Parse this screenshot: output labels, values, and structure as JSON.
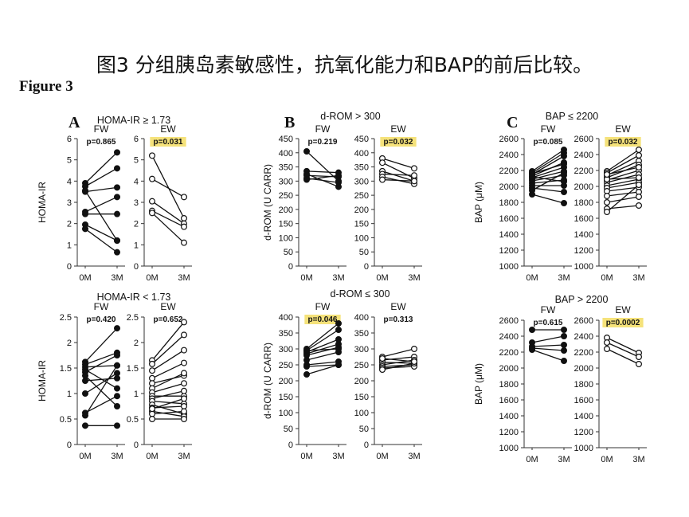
{
  "title": "图3 分组胰岛素敏感性，抗氧化能力和BAP的前后比较。",
  "figure_label": "Figure 3",
  "colors": {
    "highlight": "#f5e27a",
    "line": "#111111",
    "filled_marker": "#111111",
    "open_marker": "#ffffff"
  },
  "chart_data": [
    {
      "type": "line",
      "panel": "A",
      "title": "HOMA-IR ≥ 1.73",
      "ylabel": "HOMA-IR",
      "ylim": [
        0,
        6
      ],
      "yticks": [
        0,
        1,
        2,
        3,
        4,
        5,
        6
      ],
      "x": [
        "0M",
        "3M"
      ],
      "groups": [
        {
          "name": "FW",
          "p": "p=0.865",
          "highlight": false,
          "marker": "filled",
          "series": [
            [
              3.9,
              5.35
            ],
            [
              3.75,
              4.6
            ],
            [
              3.55,
              1.2
            ],
            [
              3.5,
              3.7
            ],
            [
              2.55,
              3.25
            ],
            [
              2.45,
              2.45
            ],
            [
              1.95,
              1.2
            ],
            [
              1.75,
              0.65
            ]
          ]
        },
        {
          "name": "EW",
          "p": "p=0.031",
          "highlight": true,
          "marker": "open",
          "series": [
            [
              5.2,
              2.25
            ],
            [
              4.1,
              3.25
            ],
            [
              3.05,
              2.0
            ],
            [
              2.6,
              1.85
            ],
            [
              2.5,
              1.1
            ]
          ]
        }
      ]
    },
    {
      "type": "line",
      "panel": "B",
      "title": "d-ROM > 300",
      "ylabel": "d-ROM (U CARR)",
      "ylim": [
        0,
        450
      ],
      "yticks": [
        0,
        50,
        100,
        150,
        200,
        250,
        300,
        350,
        400,
        450
      ],
      "x": [
        "0M",
        "3M"
      ],
      "groups": [
        {
          "name": "FW",
          "p": "p=0.219",
          "highlight": false,
          "marker": "filled",
          "series": [
            [
              405,
              300
            ],
            [
              335,
              330
            ],
            [
              325,
              280
            ],
            [
              320,
              315
            ],
            [
              310,
              295
            ],
            [
              305,
              320
            ]
          ]
        },
        {
          "name": "EW",
          "p": "p=0.032",
          "highlight": true,
          "marker": "open",
          "series": [
            [
              380,
              345
            ],
            [
              365,
              310
            ],
            [
              335,
              300
            ],
            [
              325,
              320
            ],
            [
              315,
              290
            ],
            [
              305,
              300
            ]
          ]
        }
      ]
    },
    {
      "type": "line",
      "panel": "C",
      "title": "BAP ≤ 2200",
      "ylabel": "BAP (μM)",
      "ylim": [
        1000,
        2600
      ],
      "yticks": [
        1000,
        1200,
        1400,
        1600,
        1800,
        2000,
        2200,
        2400,
        2600
      ],
      "x": [
        "0M",
        "3M"
      ],
      "groups": [
        {
          "name": "FW",
          "p": "p=0.085",
          "highlight": false,
          "marker": "filled",
          "series": [
            [
              2190,
              2460
            ],
            [
              2170,
              2420
            ],
            [
              2150,
              2380
            ],
            [
              2130,
              2300
            ],
            [
              2110,
              2240
            ],
            [
              2090,
              2190
            ],
            [
              2070,
              2140
            ],
            [
              2040,
              2080
            ],
            [
              2010,
              2010
            ],
            [
              1980,
              1930
            ],
            [
              1950,
              2170
            ],
            [
              1900,
              1790
            ],
            [
              2120,
              2060
            ],
            [
              2160,
              2280
            ]
          ]
        },
        {
          "name": "EW",
          "p": "p=0.032",
          "highlight": true,
          "marker": "open",
          "series": [
            [
              2190,
              2460
            ],
            [
              2170,
              2390
            ],
            [
              2140,
              2320
            ],
            [
              2110,
              2270
            ],
            [
              2080,
              2200
            ],
            [
              2050,
              2150
            ],
            [
              2010,
              2090
            ],
            [
              1980,
              2050
            ],
            [
              1940,
              1990
            ],
            [
              1880,
              1930
            ],
            [
              1800,
              1870
            ],
            [
              1720,
              1760
            ],
            [
              1680,
              2020
            ],
            [
              2090,
              2110
            ],
            [
              2150,
              2240
            ]
          ]
        }
      ]
    },
    {
      "type": "line",
      "panel": "",
      "title": "HOMA-IR < 1.73",
      "ylabel": "HOMA-IR",
      "ylim": [
        0,
        2.5
      ],
      "yticks": [
        0,
        0.5,
        1,
        1.5,
        2,
        2.5
      ],
      "x": [
        "0M",
        "3M"
      ],
      "groups": [
        {
          "name": "FW",
          "p": "p=0.420",
          "highlight": false,
          "marker": "filled",
          "series": [
            [
              1.62,
              2.28
            ],
            [
              1.57,
              1.8
            ],
            [
              1.52,
              1.55
            ],
            [
              1.47,
              1.1
            ],
            [
              1.42,
              1.75
            ],
            [
              1.35,
              0.75
            ],
            [
              1.25,
              1.3
            ],
            [
              1.0,
              1.4
            ],
            [
              0.62,
              0.95
            ],
            [
              0.57,
              1.55
            ],
            [
              0.37,
              0.37
            ]
          ]
        },
        {
          "name": "EW",
          "p": "p=0.652",
          "highlight": false,
          "marker": "open",
          "series": [
            [
              1.65,
              2.4
            ],
            [
              1.58,
              2.15
            ],
            [
              1.45,
              1.85
            ],
            [
              1.3,
              1.6
            ],
            [
              1.2,
              1.35
            ],
            [
              1.1,
              1.4
            ],
            [
              1.02,
              1.2
            ],
            [
              0.95,
              0.95
            ],
            [
              0.9,
              1.05
            ],
            [
              0.85,
              0.8
            ],
            [
              0.78,
              0.6
            ],
            [
              0.72,
              0.75
            ],
            [
              0.65,
              0.55
            ],
            [
              0.6,
              0.65
            ],
            [
              0.5,
              0.5
            ],
            [
              0.7,
              0.9
            ]
          ]
        }
      ]
    },
    {
      "type": "line",
      "panel": "",
      "title": "d-ROM ≤ 300",
      "ylabel": "d-ROM (U CARR)",
      "ylim": [
        0,
        400
      ],
      "yticks": [
        0,
        50,
        100,
        150,
        200,
        250,
        300,
        350,
        400
      ],
      "x": [
        "0M",
        "3M"
      ],
      "groups": [
        {
          "name": "FW",
          "p": "p=0.046",
          "highlight": true,
          "marker": "filled",
          "series": [
            [
              300,
              380
            ],
            [
              295,
              360
            ],
            [
              290,
              330
            ],
            [
              285,
              315
            ],
            [
              280,
              305
            ],
            [
              265,
              290
            ],
            [
              250,
              260
            ],
            [
              245,
              250
            ],
            [
              220,
              250
            ],
            [
              295,
              300
            ]
          ]
        },
        {
          "name": "EW",
          "p": "p=0.313",
          "highlight": false,
          "marker": "open",
          "series": [
            [
              275,
              300
            ],
            [
              265,
              275
            ],
            [
              258,
              255
            ],
            [
              250,
              265
            ],
            [
              245,
              250
            ],
            [
              240,
              245
            ],
            [
              235,
              255
            ],
            [
              270,
              260
            ]
          ]
        }
      ]
    },
    {
      "type": "line",
      "panel": "",
      "title": "BAP > 2200",
      "ylabel": "BAP (μM)",
      "ylim": [
        1000,
        2600
      ],
      "yticks": [
        1000,
        1200,
        1400,
        1600,
        1800,
        2000,
        2200,
        2400,
        2600
      ],
      "x": [
        "0M",
        "3M"
      ],
      "groups": [
        {
          "name": "FW",
          "p": "p=0.615",
          "highlight": false,
          "marker": "filled",
          "series": [
            [
              2480,
              2480
            ],
            [
              2320,
              2400
            ],
            [
              2270,
              2290
            ],
            [
              2250,
              2220
            ],
            [
              2230,
              2090
            ]
          ]
        },
        {
          "name": "EW",
          "p": "p=0.0002",
          "highlight": true,
          "marker": "open",
          "series": [
            [
              2380,
              2190
            ],
            [
              2320,
              2140
            ],
            [
              2240,
              2050
            ]
          ]
        }
      ]
    }
  ]
}
